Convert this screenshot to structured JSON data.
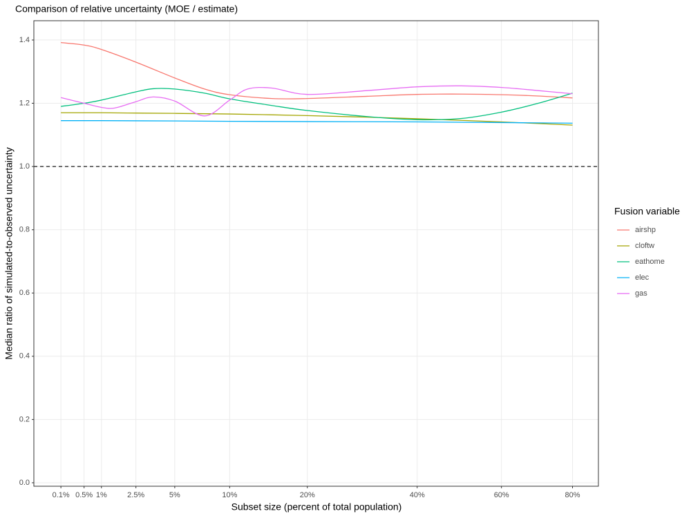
{
  "chart_data": {
    "type": "line",
    "title": "Comparison of relative uncertainty (MOE / estimate)",
    "x_label": "Subset size (percent of total population)",
    "y_label": "Median ratio of simulated-to-observed uncertainty",
    "x_scale": "sqrt",
    "xlim": [
      0,
      88
    ],
    "xticks": [
      {
        "value": 0.1,
        "label": "0.1%"
      },
      {
        "value": 0.5,
        "label": "0.5%"
      },
      {
        "value": 1,
        "label": "1%"
      },
      {
        "value": 2.5,
        "label": "2.5%"
      },
      {
        "value": 5,
        "label": "5%"
      },
      {
        "value": 10,
        "label": "10%"
      },
      {
        "value": 20,
        "label": "20%"
      },
      {
        "value": 40,
        "label": "40%"
      },
      {
        "value": 60,
        "label": "60%"
      },
      {
        "value": 80,
        "label": "80%"
      }
    ],
    "ylim": [
      -0.011,
      1.461
    ],
    "yticks": [
      {
        "value": 0,
        "label": "0.0"
      },
      0.2,
      0.4,
      0.6,
      0.8,
      {
        "value": 1,
        "label": "1.0"
      },
      1.2,
      1.4
    ],
    "hline": 1,
    "grid": true,
    "legend_title": "Fusion variable",
    "legend_position": "right",
    "series": [
      {
        "name": "airshp",
        "color": "#F8766D",
        "x": [
          0.1,
          0.5,
          1,
          2.5,
          5,
          7.5,
          10,
          15,
          20,
          30,
          40,
          50,
          60,
          70,
          80
        ],
        "values": [
          1.392,
          1.384,
          1.37,
          1.33,
          1.28,
          1.245,
          1.227,
          1.215,
          1.215,
          1.222,
          1.228,
          1.229,
          1.227,
          1.223,
          1.217
        ]
      },
      {
        "name": "cloftw",
        "color": "#A3A500",
        "x": [
          0.1,
          0.5,
          1,
          2.5,
          5,
          10,
          20,
          30,
          40,
          50,
          60,
          70,
          80
        ],
        "values": [
          1.17,
          1.17,
          1.17,
          1.169,
          1.168,
          1.166,
          1.161,
          1.156,
          1.151,
          1.146,
          1.141,
          1.136,
          1.131
        ]
      },
      {
        "name": "eathome",
        "color": "#00BF7D",
        "x": [
          0.1,
          0.5,
          1,
          2.5,
          3.5,
          5,
          7.5,
          10,
          15,
          20,
          30,
          40,
          50,
          60,
          70,
          80
        ],
        "values": [
          1.19,
          1.2,
          1.21,
          1.236,
          1.246,
          1.245,
          1.232,
          1.214,
          1.193,
          1.177,
          1.158,
          1.148,
          1.152,
          1.172,
          1.2,
          1.232
        ]
      },
      {
        "name": "elec",
        "color": "#00B0F6",
        "x": [
          0.1,
          1,
          5,
          10,
          20,
          40,
          60,
          80
        ],
        "values": [
          1.145,
          1.145,
          1.144,
          1.143,
          1.142,
          1.141,
          1.139,
          1.137
        ]
      },
      {
        "name": "gas",
        "color": "#E76BF3",
        "x": [
          0.1,
          0.5,
          1,
          1.5,
          2.5,
          3.5,
          5,
          7.5,
          10,
          12,
          15,
          20,
          30,
          40,
          50,
          60,
          70,
          80
        ],
        "values": [
          1.218,
          1.2,
          1.187,
          1.185,
          1.205,
          1.22,
          1.207,
          1.16,
          1.21,
          1.245,
          1.248,
          1.228,
          1.24,
          1.252,
          1.255,
          1.25,
          1.24,
          1.23
        ]
      }
    ]
  }
}
